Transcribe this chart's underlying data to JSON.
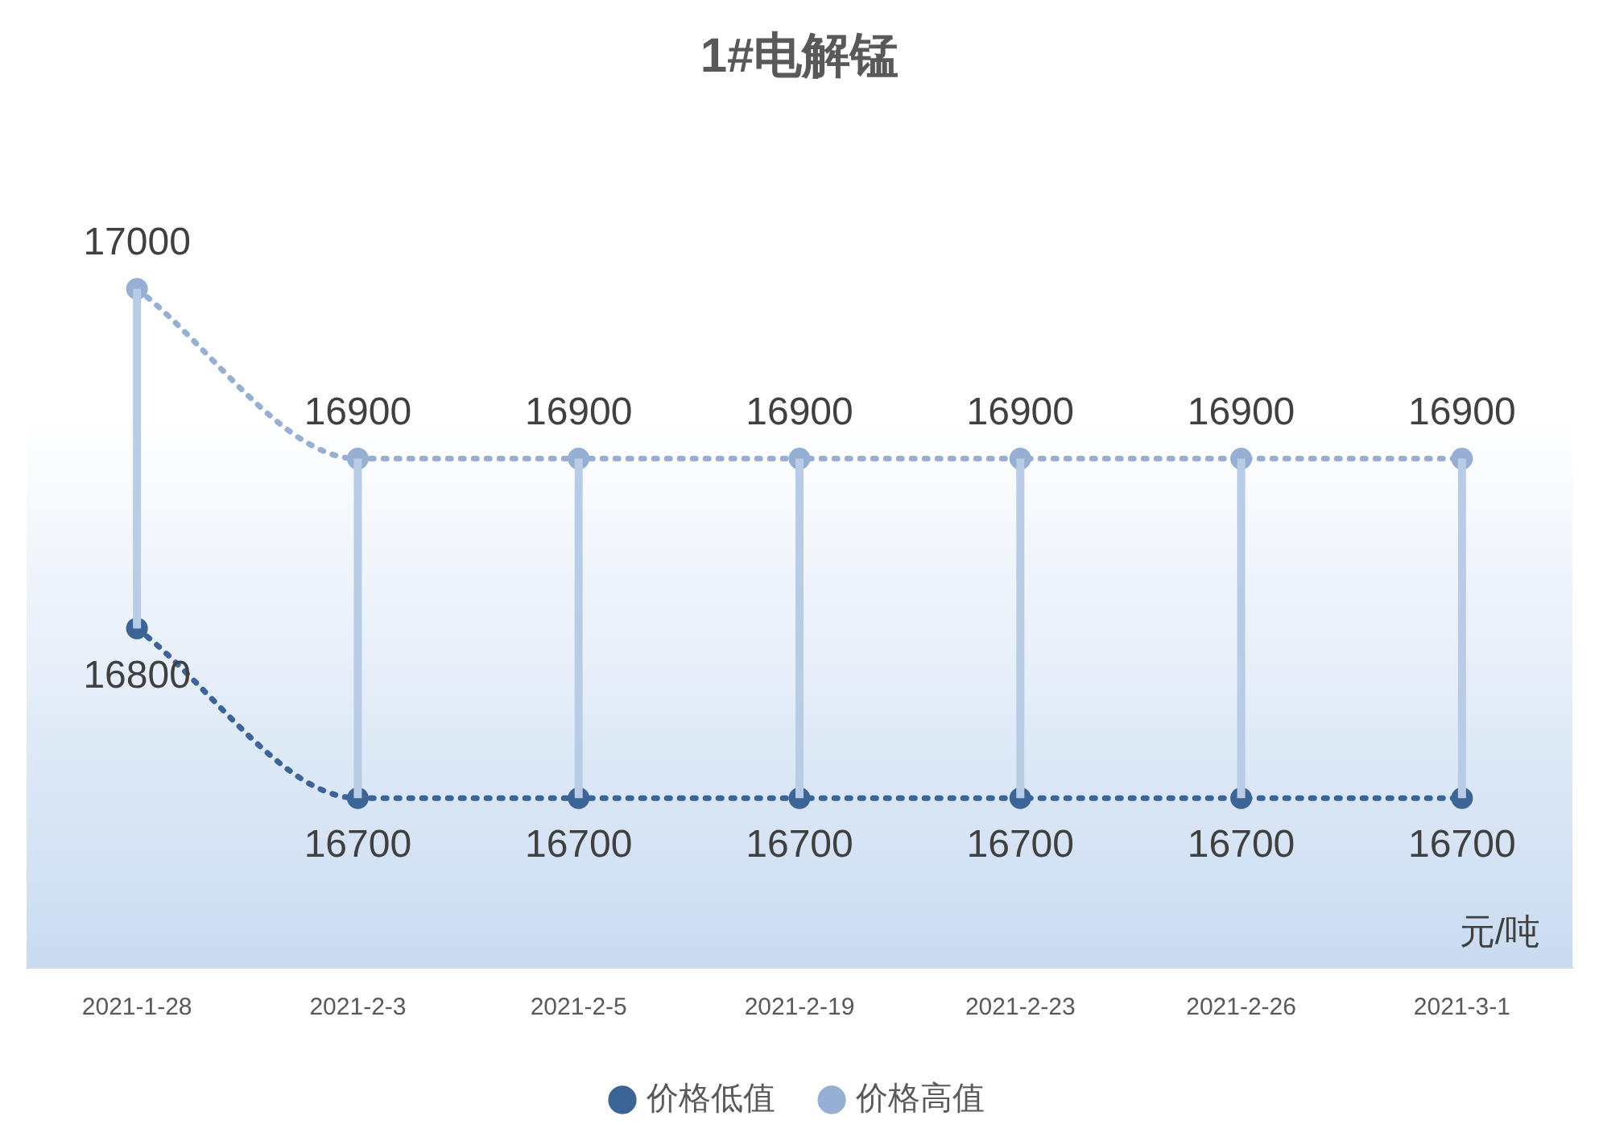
{
  "chart_data": {
    "type": "line",
    "title": "1#电解锰",
    "annotations": [
      "元/吨"
    ],
    "categories": [
      "2021-1-28",
      "2021-2-3",
      "2021-2-5",
      "2021-2-19",
      "2021-2-23",
      "2021-2-26",
      "2021-3-1"
    ],
    "series": [
      {
        "name": "价格低值",
        "color": "#3d6496",
        "values": [
          16800,
          16700,
          16700,
          16700,
          16700,
          16700,
          16700
        ]
      },
      {
        "name": "价格高值",
        "color": "#97afd2",
        "values": [
          17000,
          16900,
          16900,
          16900,
          16900,
          16900,
          16900
        ]
      }
    ],
    "data_labels": true,
    "legend": "bottom",
    "marker": "circle",
    "line_style": "dotted",
    "grid": false
  }
}
